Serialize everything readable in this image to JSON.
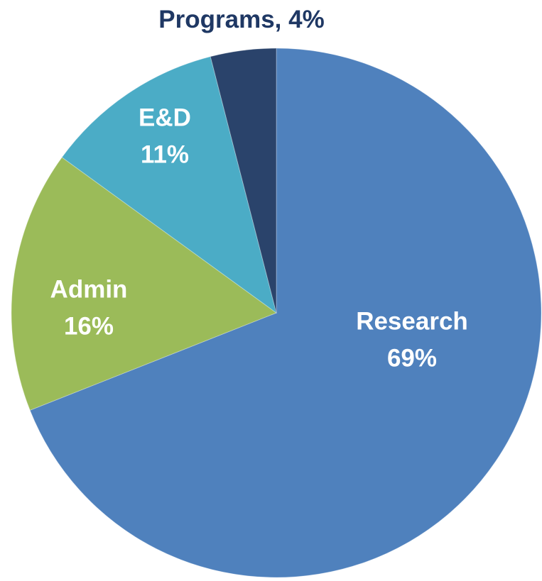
{
  "chart_data": {
    "type": "pie",
    "categories": [
      "Research",
      "Admin",
      "E&D",
      "Programs"
    ],
    "values": [
      69,
      16,
      11,
      4
    ],
    "value_labels": [
      "69%",
      "16%",
      "11%",
      "4%"
    ],
    "colors": [
      "#4f81bd",
      "#9bbb59",
      "#4bacc6",
      "#2a436b"
    ]
  }
}
